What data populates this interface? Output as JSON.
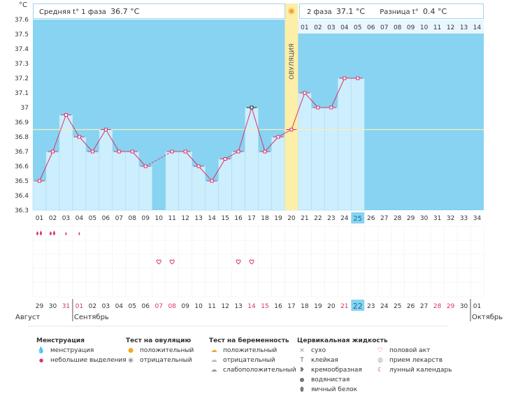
{
  "chart_data": {
    "type": "line",
    "y_unit_label": "°C",
    "ylim": [
      36.3,
      37.6
    ],
    "y_ticks": [
      "37.6",
      "37.5",
      "37.4",
      "37.3",
      "37.2",
      "37.1",
      "37",
      "36.9",
      "36.8",
      "36.7",
      "36.6",
      "36.5",
      "36.4",
      "36.3"
    ],
    "y_tick_values": [
      37.6,
      37.5,
      37.4,
      37.3,
      37.2,
      37.1,
      37.0,
      36.9,
      36.8,
      36.7,
      36.6,
      36.5,
      36.4,
      36.3
    ],
    "cycle_days": [
      "01",
      "02",
      "03",
      "04",
      "05",
      "06",
      "07",
      "08",
      "09",
      "10",
      "11",
      "12",
      "13",
      "14",
      "15",
      "16",
      "17",
      "18",
      "19",
      "20",
      "21",
      "22",
      "23",
      "24",
      "25",
      "26",
      "27",
      "28",
      "29",
      "30",
      "31",
      "32",
      "33",
      "34"
    ],
    "calendar_dates": [
      "29",
      "30",
      "31",
      "01",
      "02",
      "03",
      "04",
      "05",
      "06",
      "07",
      "08",
      "09",
      "10",
      "11",
      "12",
      "13",
      "14",
      "15",
      "16",
      "17",
      "18",
      "19",
      "20",
      "21",
      "22",
      "23",
      "24",
      "25",
      "26",
      "27",
      "28",
      "29",
      "30",
      "01"
    ],
    "weekend_dates_index": [
      2,
      3,
      9,
      10,
      16,
      17,
      23,
      24,
      30,
      31
    ],
    "today_index": 24,
    "months": [
      {
        "label": "Август",
        "start_index": 0
      },
      {
        "label": "Сентябрь",
        "start_index": 3
      },
      {
        "label": "Октябрь",
        "start_index": 33
      }
    ],
    "temperatures": [
      36.5,
      36.7,
      36.95,
      36.8,
      36.7,
      36.85,
      36.7,
      36.7,
      36.6,
      null,
      36.7,
      36.7,
      36.6,
      36.5,
      36.65,
      36.7,
      37.0,
      36.7,
      36.8,
      36.85,
      37.1,
      37.0,
      37.0,
      37.2,
      37.2
    ],
    "highlight_index": 16,
    "coverline": 36.85,
    "ovulation_day_index": 19,
    "ovulation_label": "ОВУЛЯЦИЯ",
    "phase2_days": [
      "01",
      "02",
      "03",
      "04",
      "05",
      "06",
      "07",
      "08",
      "09",
      "10",
      "11",
      "12",
      "13",
      "14"
    ],
    "phase1_label": "Средняя t° 1 фаза",
    "phase1_value": "36.7 °C",
    "phase2_label": "2 фаза",
    "phase2_value": "37.1 °C",
    "diff_label": "Разница t°",
    "diff_value": "0.4 °C",
    "menstruation_days": [
      {
        "index": 0,
        "type": "heavy"
      },
      {
        "index": 1,
        "type": "heavy"
      },
      {
        "index": 2,
        "type": "light"
      },
      {
        "index": 3,
        "type": "light"
      }
    ],
    "intercourse_days": [
      9,
      10,
      15,
      16
    ],
    "colors": {
      "sky": "#87d3f1",
      "bar_fill": "#cdeefd",
      "bar_edge": "#a6dbf3",
      "line": "#d8336a",
      "marker_fill": "#ffffff",
      "ovulation_band": "#fdeea8",
      "coverline": "#f7efb8",
      "weekend_text": "#d8336a",
      "today_bg": "#87d3f1",
      "grid_dot": "#cfcfcf"
    }
  },
  "legend": {
    "menstruation": {
      "title": "Менструация",
      "items": [
        {
          "icon": "drop-double-icon",
          "label": "менструация"
        },
        {
          "icon": "drop-small-icon",
          "label": "небольшие выделения"
        }
      ]
    },
    "ovulation_test": {
      "title": "Тест на овуляцию",
      "items": [
        {
          "icon": "sun-positive-icon",
          "label": "положительный"
        },
        {
          "icon": "circle-negative-icon",
          "label": "отрицательный"
        }
      ]
    },
    "pregnancy_test": {
      "title": "Тест на беременность",
      "items": [
        {
          "icon": "cloud-positive-icon",
          "label": "положительный"
        },
        {
          "icon": "cloud-negative-icon",
          "label": "отрицательный"
        },
        {
          "icon": "cloud-weak-icon",
          "label": "слабоположительный"
        }
      ]
    },
    "cervical": {
      "title": "Цервикальная жидкость",
      "items": [
        {
          "icon": "cross-icon",
          "label": "сухо"
        },
        {
          "icon": "t-icon",
          "label": "клейкая"
        },
        {
          "icon": "creamy-icon",
          "label": "кремообразная"
        },
        {
          "icon": "water-drop-icon",
          "label": "водянистая"
        },
        {
          "icon": "egg-icon",
          "label": "яичный белок"
        }
      ]
    },
    "other": {
      "items": [
        {
          "icon": "heart-icon",
          "label": "половой акт"
        },
        {
          "icon": "pill-icon",
          "label": "прием лекарств"
        },
        {
          "icon": "moon-icon",
          "label": "лунный календарь"
        }
      ]
    }
  }
}
